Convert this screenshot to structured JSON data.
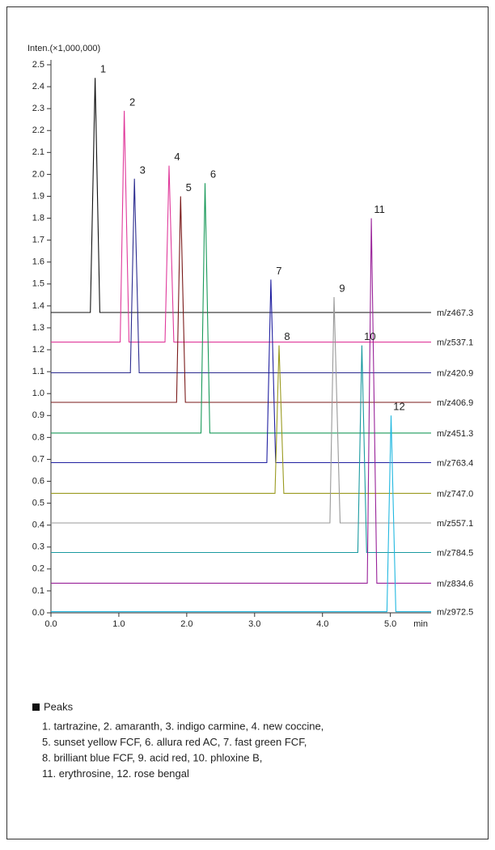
{
  "chart_data": {
    "type": "line",
    "y_label": "Inten.(×1,000,000)",
    "x_label": "min",
    "xlim": [
      0,
      5.6
    ],
    "ylim": [
      0,
      2.5
    ],
    "xticks": [
      {
        "value": 0,
        "label": "0.0"
      },
      {
        "value": 1,
        "label": "1.0"
      },
      {
        "value": 2,
        "label": "2.0"
      },
      {
        "value": 3,
        "label": "3.0"
      },
      {
        "value": 4,
        "label": "4.0"
      },
      {
        "value": 5,
        "label": "5.0"
      }
    ],
    "yticks": [
      {
        "value": 0,
        "label": "0.0"
      },
      {
        "value": 0.1,
        "label": "0.1"
      },
      {
        "value": 0.2,
        "label": "0.2"
      },
      {
        "value": 0.3,
        "label": "0.3"
      },
      {
        "value": 0.4,
        "label": "0.4"
      },
      {
        "value": 0.5,
        "label": "0.5"
      },
      {
        "value": 0.6,
        "label": "0.6"
      },
      {
        "value": 0.7,
        "label": "0.7"
      },
      {
        "value": 0.8,
        "label": "0.8"
      },
      {
        "value": 0.9,
        "label": "0.9"
      },
      {
        "value": 1,
        "label": "1.0"
      },
      {
        "value": 1.1,
        "label": "1.1"
      },
      {
        "value": 1.2,
        "label": "1.2"
      },
      {
        "value": 1.3,
        "label": "1.3"
      },
      {
        "value": 1.4,
        "label": "1.4"
      },
      {
        "value": 1.5,
        "label": "1.5"
      },
      {
        "value": 1.6,
        "label": "1.6"
      },
      {
        "value": 1.7,
        "label": "1.7"
      },
      {
        "value": 1.8,
        "label": "1.8"
      },
      {
        "value": 1.9,
        "label": "1.9"
      },
      {
        "value": 2,
        "label": "2.0"
      },
      {
        "value": 2.1,
        "label": "2.1"
      },
      {
        "value": 2.2,
        "label": "2.2"
      },
      {
        "value": 2.3,
        "label": "2.3"
      },
      {
        "value": 2.4,
        "label": "2.4"
      },
      {
        "value": 2.5,
        "label": "2.5"
      }
    ],
    "series": [
      {
        "name": "m/z467.3",
        "color": "#111111",
        "x": [
          0,
          0.58,
          0.65,
          0.72,
          5.6
        ],
        "values": [
          1.37,
          1.37,
          2.44,
          1.37,
          1.37
        ]
      },
      {
        "name": "m/z537.1",
        "color": "#e0399b",
        "x": [
          0,
          1.02,
          1.08,
          1.15,
          1.68,
          1.74,
          1.81,
          5.6
        ],
        "values": [
          1.235,
          1.235,
          2.29,
          1.235,
          1.235,
          2.04,
          1.235,
          1.235
        ]
      },
      {
        "name": "m/z420.9",
        "color": "#2b2b8f",
        "x": [
          0,
          1.17,
          1.23,
          1.3,
          5.6
        ],
        "values": [
          1.095,
          1.095,
          1.98,
          1.095,
          1.095
        ]
      },
      {
        "name": "m/z406.9",
        "color": "#7a1a1a",
        "x": [
          0,
          1.85,
          1.91,
          1.98,
          5.6
        ],
        "values": [
          0.96,
          0.96,
          1.9,
          0.96,
          0.96
        ]
      },
      {
        "name": "m/z451.3",
        "color": "#1a9a5a",
        "x": [
          0,
          2.21,
          2.27,
          2.34,
          5.6
        ],
        "values": [
          0.82,
          0.82,
          1.96,
          0.82,
          0.82
        ]
      },
      {
        "name": "m/z763.4",
        "color": "#2020a0",
        "x": [
          0,
          3.18,
          3.24,
          3.31,
          5.6
        ],
        "values": [
          0.685,
          0.685,
          1.52,
          0.685,
          0.685
        ]
      },
      {
        "name": "m/z747.0",
        "color": "#9a9a20",
        "x": [
          0,
          3.3,
          3.36,
          3.43,
          5.6
        ],
        "values": [
          0.545,
          0.545,
          1.22,
          0.545,
          0.545
        ]
      },
      {
        "name": "m/z557.1",
        "color": "#999999",
        "x": [
          0,
          4.11,
          4.17,
          4.26,
          5.6
        ],
        "values": [
          0.41,
          0.41,
          1.44,
          0.41,
          0.41
        ]
      },
      {
        "name": "m/z784.5",
        "color": "#1a9aa0",
        "x": [
          0,
          4.52,
          4.58,
          4.65,
          5.6
        ],
        "values": [
          0.275,
          0.275,
          1.22,
          0.275,
          0.275
        ]
      },
      {
        "name": "m/z834.6",
        "color": "#992299",
        "x": [
          0,
          4.66,
          4.72,
          4.8,
          5.6
        ],
        "values": [
          0.135,
          0.135,
          1.8,
          0.135,
          0.135
        ]
      },
      {
        "name": "m/z972.5",
        "color": "#22b8e0",
        "x": [
          0,
          4.95,
          5.01,
          5.08,
          5.6
        ],
        "values": [
          0.005,
          0.005,
          0.9,
          0.005,
          0.005
        ]
      }
    ],
    "annotations": [
      {
        "text": "1",
        "x": 0.65,
        "y": 2.44
      },
      {
        "text": "2",
        "x": 1.08,
        "y": 2.29
      },
      {
        "text": "3",
        "x": 1.23,
        "y": 1.98
      },
      {
        "text": "4",
        "x": 1.74,
        "y": 2.04
      },
      {
        "text": "5",
        "x": 1.91,
        "y": 1.9
      },
      {
        "text": "6",
        "x": 2.27,
        "y": 1.96
      },
      {
        "text": "7",
        "x": 3.24,
        "y": 1.52
      },
      {
        "text": "8",
        "x": 3.36,
        "y": 1.22
      },
      {
        "text": "9",
        "x": 4.17,
        "y": 1.44
      },
      {
        "text": "10",
        "x": 4.58,
        "y": 1.22
      },
      {
        "text": "11",
        "x": 4.72,
        "y": 1.8
      },
      {
        "text": "12",
        "x": 5.01,
        "y": 0.9
      }
    ],
    "notes": {
      "title": "Peaks",
      "lines": [
        "1. tartrazine, 2. amaranth, 3. indigo carmine, 4. new coccine,",
        "5. sunset yellow FCF, 6. allura red AC, 7. fast green FCF,",
        "8. brilliant blue FCF, 9. acid red, 10. phloxine B,",
        "11. erythrosine, 12. rose bengal"
      ]
    }
  }
}
